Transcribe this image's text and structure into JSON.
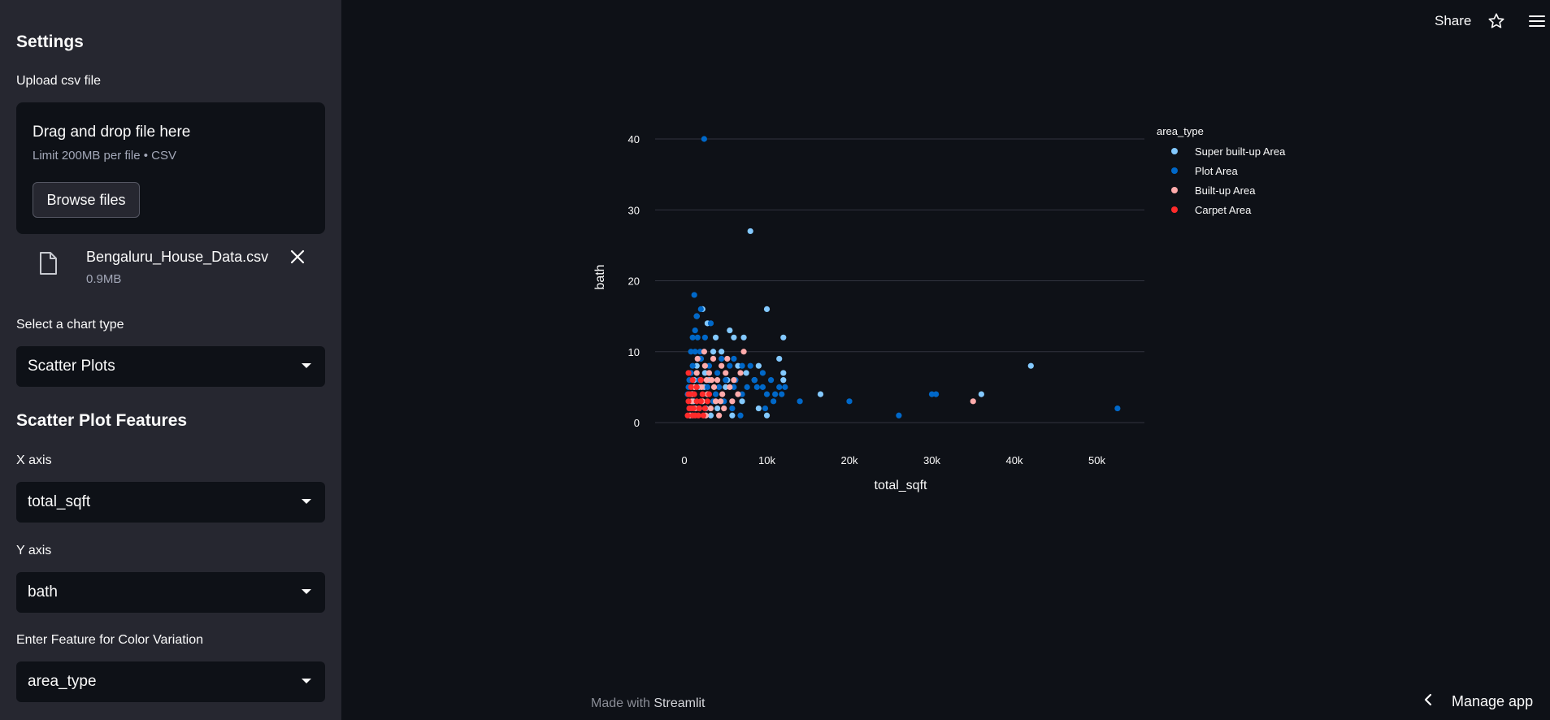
{
  "sidebar": {
    "title": "Settings",
    "upload_label": "Upload csv file",
    "dropzone": {
      "title": "Drag and drop file here",
      "limit": "Limit 200MB per file • CSV",
      "browse_label": "Browse files"
    },
    "file": {
      "name": "Bengaluru_House_Data.csv",
      "size": "0.9MB"
    },
    "chart_type_label": "Select a chart type",
    "chart_type_value": "Scatter Plots",
    "section_title": "Scatter Plot Features",
    "x_label": "X axis",
    "x_value": "total_sqft",
    "y_label": "Y axis",
    "y_value": "bath",
    "color_label": "Enter Feature for Color Variation",
    "color_value": "area_type"
  },
  "header": {
    "share_label": "Share",
    "icons": [
      "star-icon",
      "hamburger-menu-icon"
    ]
  },
  "footer": {
    "made_with": "Made with",
    "brand": "Streamlit",
    "manage_label": "Manage app"
  },
  "colors": {
    "background": "#0e1117",
    "sidebar": "#262730",
    "super_built_up": "#83c9ff",
    "plot_area": "#0068c9",
    "built_up": "#ffabab",
    "carpet": "#ff2b2b"
  },
  "chart_data": {
    "type": "scatter",
    "xlabel": "total_sqft",
    "ylabel": "bath",
    "xlim": [
      -3500,
      56000
    ],
    "ylim": [
      0,
      40
    ],
    "xticks": [
      0,
      10000,
      20000,
      30000,
      40000,
      50000
    ],
    "xtick_labels": [
      "0",
      "10k",
      "20k",
      "30k",
      "40k",
      "50k"
    ],
    "yticks": [
      0,
      10,
      20,
      30,
      40
    ],
    "ytick_labels": [
      "0",
      "10",
      "20",
      "30",
      "40"
    ],
    "grid": true,
    "legend_title": "area_type",
    "legend_position": "top-right",
    "series": [
      {
        "name": "Super built-up Area",
        "color": "#83c9ff",
        "points": [
          [
            8000,
            27
          ],
          [
            2200,
            16
          ],
          [
            10000,
            16
          ],
          [
            12000,
            12
          ],
          [
            5500,
            13
          ],
          [
            7200,
            12
          ],
          [
            3800,
            12
          ],
          [
            6000,
            12
          ],
          [
            11500,
            9
          ],
          [
            12000,
            7
          ],
          [
            12000,
            6
          ],
          [
            16500,
            4
          ],
          [
            36000,
            4
          ],
          [
            42000,
            8
          ],
          [
            8500,
            6
          ],
          [
            5000,
            5
          ],
          [
            3500,
            10
          ],
          [
            4500,
            10
          ],
          [
            9000,
            8
          ],
          [
            2000,
            9
          ],
          [
            1500,
            8
          ],
          [
            2500,
            7
          ],
          [
            3000,
            6
          ],
          [
            1200,
            6
          ],
          [
            1800,
            5
          ],
          [
            6500,
            8
          ],
          [
            7500,
            7
          ],
          [
            5800,
            1
          ],
          [
            10000,
            1
          ],
          [
            2800,
            14
          ],
          [
            1500,
            15
          ],
          [
            9000,
            2
          ],
          [
            7000,
            3
          ],
          [
            4000,
            2
          ],
          [
            2400,
            5
          ],
          [
            1100,
            3
          ],
          [
            900,
            4
          ],
          [
            3200,
            1
          ],
          [
            2600,
            2
          ],
          [
            5200,
            6
          ]
        ]
      },
      {
        "name": "Plot Area",
        "color": "#0068c9",
        "points": [
          [
            2400,
            40
          ],
          [
            1200,
            18
          ],
          [
            1500,
            15
          ],
          [
            2000,
            16
          ],
          [
            3200,
            14
          ],
          [
            1300,
            13
          ],
          [
            1000,
            12
          ],
          [
            1600,
            12
          ],
          [
            2500,
            12
          ],
          [
            800,
            10
          ],
          [
            1300,
            10
          ],
          [
            1900,
            10
          ],
          [
            2400,
            10
          ],
          [
            4500,
            9
          ],
          [
            5500,
            8
          ],
          [
            6000,
            9
          ],
          [
            7000,
            8
          ],
          [
            9500,
            7
          ],
          [
            10500,
            6
          ],
          [
            11500,
            5
          ],
          [
            8500,
            6
          ],
          [
            9500,
            5
          ],
          [
            10000,
            4
          ],
          [
            11000,
            4
          ],
          [
            11800,
            4
          ],
          [
            14000,
            3
          ],
          [
            20000,
            3
          ],
          [
            26000,
            1
          ],
          [
            30000,
            4
          ],
          [
            30500,
            4
          ],
          [
            52500,
            2
          ],
          [
            8000,
            8
          ],
          [
            3000,
            8
          ],
          [
            4000,
            7
          ],
          [
            5000,
            6
          ],
          [
            6000,
            5
          ],
          [
            7000,
            4
          ],
          [
            2000,
            9
          ],
          [
            1000,
            8
          ],
          [
            800,
            7
          ],
          [
            600,
            6
          ],
          [
            500,
            5
          ],
          [
            400,
            4
          ],
          [
            1800,
            6
          ],
          [
            2800,
            5
          ],
          [
            3800,
            4
          ],
          [
            4800,
            3
          ],
          [
            5800,
            2
          ],
          [
            6800,
            1
          ],
          [
            9800,
            2
          ],
          [
            10800,
            3
          ],
          [
            600,
            2
          ],
          [
            1000,
            1
          ],
          [
            3500,
            3
          ],
          [
            4200,
            5
          ],
          [
            6200,
            6
          ],
          [
            7600,
            5
          ],
          [
            12200,
            5
          ],
          [
            8800,
            5
          ]
        ]
      },
      {
        "name": "Built-up Area",
        "color": "#ffabab",
        "points": [
          [
            7200,
            10
          ],
          [
            35000,
            3
          ],
          [
            4500,
            8
          ],
          [
            5000,
            7
          ],
          [
            3500,
            9
          ],
          [
            2500,
            8
          ],
          [
            1500,
            7
          ],
          [
            3000,
            7
          ],
          [
            4000,
            6
          ],
          [
            6000,
            6
          ],
          [
            5500,
            5
          ],
          [
            2000,
            6
          ],
          [
            1200,
            5
          ],
          [
            2800,
            4
          ],
          [
            3800,
            3
          ],
          [
            4800,
            2
          ],
          [
            5800,
            3
          ],
          [
            6500,
            4
          ],
          [
            1000,
            4
          ],
          [
            2200,
            3
          ],
          [
            3200,
            2
          ],
          [
            4200,
            1
          ],
          [
            700,
            1
          ],
          [
            1800,
            2
          ],
          [
            2600,
            1
          ],
          [
            3600,
            5
          ],
          [
            4600,
            4
          ],
          [
            5200,
            9
          ],
          [
            6800,
            7
          ],
          [
            1600,
            9
          ],
          [
            2400,
            10
          ],
          [
            3300,
            6
          ],
          [
            900,
            3
          ],
          [
            1300,
            2
          ],
          [
            2100,
            5
          ],
          [
            2700,
            6
          ],
          [
            4400,
            3
          ]
        ]
      },
      {
        "name": "Carpet Area",
        "color": "#ff2b2b",
        "points": [
          [
            500,
            7
          ],
          [
            500,
            3
          ],
          [
            800,
            2
          ],
          [
            1000,
            1
          ],
          [
            1200,
            4
          ],
          [
            1500,
            3
          ],
          [
            1800,
            2
          ],
          [
            2000,
            3
          ],
          [
            2200,
            4
          ],
          [
            2500,
            2
          ],
          [
            1000,
            6
          ],
          [
            1500,
            5
          ],
          [
            2000,
            6
          ],
          [
            800,
            5
          ],
          [
            1300,
            1
          ],
          [
            1700,
            1
          ],
          [
            2300,
            1
          ],
          [
            400,
            1
          ],
          [
            600,
            2
          ],
          [
            2800,
            3
          ],
          [
            3000,
            4
          ],
          [
            500,
            4
          ],
          [
            700,
            4
          ],
          [
            1100,
            2
          ]
        ]
      }
    ]
  }
}
